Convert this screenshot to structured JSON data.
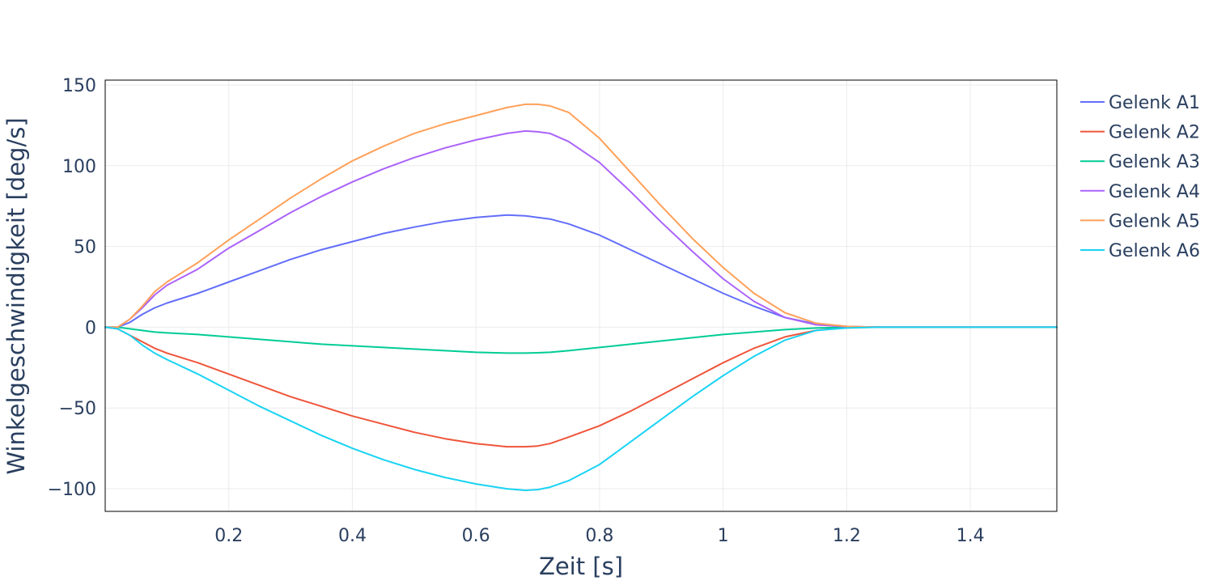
{
  "chart_data": {
    "type": "line",
    "title": "",
    "xlabel": "Zeit [s]",
    "ylabel": "Winkelgeschwindigkeit [deg/s]",
    "xlim": [
      0,
      1.54
    ],
    "ylim": [
      -114,
      153
    ],
    "x_ticks": [
      0.2,
      0.4,
      0.6,
      0.8,
      1,
      1.2,
      1.4
    ],
    "x_tick_labels": [
      "0.2",
      "0.4",
      "0.6",
      "0.8",
      "1",
      "1.2",
      "1.4"
    ],
    "y_ticks": [
      -100,
      -50,
      0,
      50,
      100,
      150
    ],
    "y_tick_labels": [
      "−100",
      "−50",
      "0",
      "50",
      "100",
      "150"
    ],
    "grid": true,
    "legend_position": "top-right-outside",
    "x": [
      0,
      0.02,
      0.04,
      0.06,
      0.08,
      0.1,
      0.15,
      0.2,
      0.25,
      0.3,
      0.35,
      0.4,
      0.45,
      0.5,
      0.55,
      0.6,
      0.65,
      0.68,
      0.7,
      0.72,
      0.75,
      0.8,
      0.85,
      0.9,
      0.95,
      1,
      1.05,
      1.1,
      1.15,
      1.2,
      1.25,
      1.3,
      1.4,
      1.54
    ],
    "series": [
      {
        "name": "Gelenk A1",
        "color": "#636efa",
        "values": [
          0,
          0,
          3,
          8,
          12,
          15,
          21,
          28,
          35,
          42,
          48,
          53,
          58,
          62,
          65.5,
          68,
          69.5,
          69,
          68,
          67,
          64,
          57,
          48,
          39,
          30,
          21,
          13,
          6,
          2,
          0.5,
          0,
          0,
          0,
          0
        ]
      },
      {
        "name": "Gelenk A2",
        "color": "#ef553b",
        "values": [
          0,
          -1,
          -5,
          -9,
          -13,
          -16,
          -22,
          -29,
          -36,
          -43,
          -49,
          -55,
          -60,
          -65,
          -69,
          -72,
          -74,
          -74,
          -73.5,
          -72,
          -68,
          -61,
          -52,
          -42,
          -32,
          -22,
          -13,
          -6,
          -2,
          0,
          0,
          0,
          0,
          0
        ]
      },
      {
        "name": "Gelenk A3",
        "color": "#00cc96",
        "values": [
          0,
          0,
          -1,
          -2,
          -3,
          -3.5,
          -4.5,
          -6,
          -7.5,
          -9,
          -10.5,
          -11.5,
          -12.5,
          -13.5,
          -14.5,
          -15.5,
          -16,
          -16,
          -15.8,
          -15.5,
          -14.5,
          -12.5,
          -10.5,
          -8.5,
          -6.5,
          -4.5,
          -3,
          -1.5,
          -0.5,
          0,
          0,
          0,
          0,
          0
        ]
      },
      {
        "name": "Gelenk A4",
        "color": "#ab63fa",
        "values": [
          0,
          0,
          5,
          12,
          20,
          26,
          36,
          49,
          60,
          71,
          81,
          90,
          98,
          105,
          111,
          116,
          120,
          121.5,
          121,
          120,
          115,
          102,
          84,
          65,
          47,
          30,
          16,
          6,
          1.5,
          0.3,
          0,
          0,
          0,
          0
        ]
      },
      {
        "name": "Gelenk A5",
        "color": "#ffa15a",
        "values": [
          0,
          0,
          5,
          13,
          22,
          28,
          40,
          54,
          67,
          80,
          92,
          103,
          112,
          120,
          126,
          131,
          136,
          138,
          138,
          137,
          133,
          117,
          96,
          75,
          55,
          37,
          21,
          9,
          2.5,
          0.5,
          0,
          0,
          0,
          0
        ]
      },
      {
        "name": "Gelenk A6",
        "color": "#19d3f3",
        "values": [
          0,
          -1,
          -5,
          -11,
          -16,
          -20,
          -29,
          -39,
          -49,
          -58,
          -67,
          -75,
          -82,
          -88,
          -93,
          -97,
          -100,
          -101,
          -100.5,
          -99,
          -95,
          -85,
          -71,
          -57,
          -43,
          -30,
          -18,
          -8,
          -2,
          -0.5,
          0,
          0,
          0,
          0
        ]
      }
    ]
  }
}
